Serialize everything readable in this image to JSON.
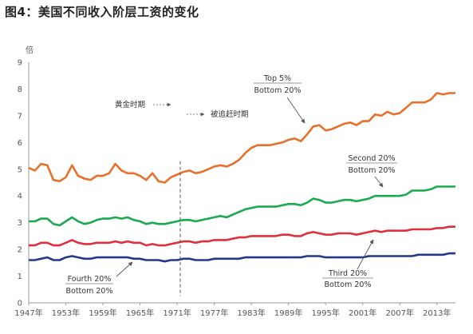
{
  "title": "图4：美国不同收入阶层工资的变化",
  "chart_data": {
    "type": "line",
    "title": "图4：美国不同收入阶层工资的变化",
    "ylabel": "倍",
    "xlabel": "",
    "xlim": [
      1947,
      2016
    ],
    "ylim": [
      0,
      9
    ],
    "yticks": [
      0,
      1,
      2,
      3,
      4,
      5,
      6,
      7,
      8,
      9
    ],
    "xticks": [
      {
        "v": 1947,
        "label": "1947年"
      },
      {
        "v": 1953,
        "label": "1953年"
      },
      {
        "v": 1959,
        "label": "1959年"
      },
      {
        "v": 1965,
        "label": "1965年"
      },
      {
        "v": 1971,
        "label": "1971年"
      },
      {
        "v": 1977,
        "label": "1977年"
      },
      {
        "v": 1983,
        "label": "1983年"
      },
      {
        "v": 1989,
        "label": "1989年"
      },
      {
        "v": 1995,
        "label": "1995年"
      },
      {
        "v": 2001,
        "label": "2001年"
      },
      {
        "v": 2007,
        "label": "2007年"
      },
      {
        "v": 2013,
        "label": "2013年"
      }
    ],
    "x": [
      1947,
      1948,
      1949,
      1950,
      1951,
      1952,
      1953,
      1954,
      1955,
      1956,
      1957,
      1958,
      1959,
      1960,
      1961,
      1962,
      1963,
      1964,
      1965,
      1966,
      1967,
      1968,
      1969,
      1970,
      1971,
      1972,
      1973,
      1974,
      1975,
      1976,
      1977,
      1978,
      1979,
      1980,
      1981,
      1982,
      1983,
      1984,
      1985,
      1986,
      1987,
      1988,
      1989,
      1990,
      1991,
      1992,
      1993,
      1994,
      1995,
      1996,
      1997,
      1998,
      1999,
      2000,
      2001,
      2002,
      2003,
      2004,
      2005,
      2006,
      2007,
      2008,
      2009,
      2010,
      2011,
      2012,
      2013,
      2014,
      2015,
      2016
    ],
    "series": [
      {
        "name": "Top 5%/Bottom 20%",
        "color": "#e8702a",
        "values": [
          5.05,
          4.95,
          5.2,
          5.15,
          4.6,
          4.55,
          4.7,
          5.15,
          4.75,
          4.65,
          4.6,
          4.75,
          4.75,
          4.85,
          5.2,
          4.95,
          4.85,
          4.85,
          4.75,
          4.6,
          4.85,
          4.55,
          4.5,
          4.7,
          4.8,
          4.9,
          4.95,
          4.85,
          4.9,
          5.0,
          5.1,
          5.15,
          5.1,
          5.2,
          5.35,
          5.6,
          5.8,
          5.9,
          5.9,
          5.9,
          5.95,
          6.0,
          6.1,
          6.15,
          6.05,
          6.3,
          6.6,
          6.65,
          6.45,
          6.5,
          6.6,
          6.7,
          6.75,
          6.65,
          6.8,
          6.8,
          7.05,
          7.0,
          7.15,
          7.05,
          7.1,
          7.3,
          7.5,
          7.5,
          7.5,
          7.6,
          7.85,
          7.8,
          7.85,
          7.85
        ]
      },
      {
        "name": "Second 20%/Bottom 20%",
        "color": "#1aab4f",
        "values": [
          3.05,
          3.05,
          3.15,
          3.15,
          2.95,
          2.9,
          3.05,
          3.2,
          3.05,
          2.95,
          3.0,
          3.1,
          3.15,
          3.15,
          3.2,
          3.15,
          3.2,
          3.1,
          3.05,
          2.95,
          3.0,
          2.95,
          2.95,
          3.0,
          3.05,
          3.1,
          3.1,
          3.05,
          3.1,
          3.15,
          3.2,
          3.25,
          3.2,
          3.3,
          3.4,
          3.5,
          3.55,
          3.6,
          3.6,
          3.6,
          3.6,
          3.65,
          3.7,
          3.7,
          3.65,
          3.75,
          3.9,
          3.85,
          3.75,
          3.75,
          3.8,
          3.85,
          3.85,
          3.8,
          3.85,
          3.9,
          4.0,
          4.0,
          4.0,
          4.0,
          4.0,
          4.05,
          4.2,
          4.2,
          4.2,
          4.25,
          4.35,
          4.35,
          4.35,
          4.35
        ]
      },
      {
        "name": "Third 20%/Bottom 20%",
        "color": "#e0303d",
        "values": [
          2.15,
          2.15,
          2.25,
          2.25,
          2.15,
          2.15,
          2.25,
          2.35,
          2.25,
          2.2,
          2.2,
          2.25,
          2.25,
          2.25,
          2.3,
          2.25,
          2.3,
          2.25,
          2.25,
          2.15,
          2.2,
          2.15,
          2.15,
          2.2,
          2.25,
          2.3,
          2.3,
          2.25,
          2.3,
          2.3,
          2.35,
          2.35,
          2.35,
          2.4,
          2.45,
          2.45,
          2.5,
          2.5,
          2.5,
          2.5,
          2.5,
          2.55,
          2.55,
          2.5,
          2.5,
          2.6,
          2.65,
          2.6,
          2.55,
          2.55,
          2.6,
          2.6,
          2.6,
          2.55,
          2.6,
          2.65,
          2.7,
          2.65,
          2.7,
          2.7,
          2.7,
          2.7,
          2.75,
          2.75,
          2.75,
          2.75,
          2.8,
          2.8,
          2.85,
          2.85
        ]
      },
      {
        "name": "Fourth 20%/Bottom 20%",
        "color": "#22388c",
        "values": [
          1.6,
          1.6,
          1.65,
          1.7,
          1.6,
          1.6,
          1.7,
          1.75,
          1.7,
          1.65,
          1.65,
          1.7,
          1.7,
          1.7,
          1.7,
          1.7,
          1.7,
          1.65,
          1.65,
          1.6,
          1.6,
          1.6,
          1.55,
          1.6,
          1.6,
          1.65,
          1.65,
          1.6,
          1.6,
          1.6,
          1.65,
          1.65,
          1.65,
          1.65,
          1.65,
          1.7,
          1.7,
          1.7,
          1.7,
          1.7,
          1.7,
          1.7,
          1.7,
          1.7,
          1.7,
          1.75,
          1.75,
          1.75,
          1.7,
          1.7,
          1.7,
          1.7,
          1.7,
          1.7,
          1.7,
          1.75,
          1.75,
          1.75,
          1.75,
          1.75,
          1.75,
          1.75,
          1.75,
          1.8,
          1.8,
          1.8,
          1.8,
          1.8,
          1.85,
          1.85
        ]
      }
    ],
    "grid": false,
    "legend": "inline-annotations",
    "annotations": {
      "top5_line1": "Top 5%",
      "top5_line2": "Bottom 20%",
      "second_line1": "Second 20%",
      "second_line2": "Bottom 20%",
      "third_line1": "Third 20%",
      "third_line2": "Bottom 20%",
      "fourth_line1": "Fourth 20%",
      "fourth_line2": "Bottom 20%",
      "golden_era": "黄金时期",
      "catch_up": "被追赶时期"
    },
    "divider_year": 1971.5
  }
}
